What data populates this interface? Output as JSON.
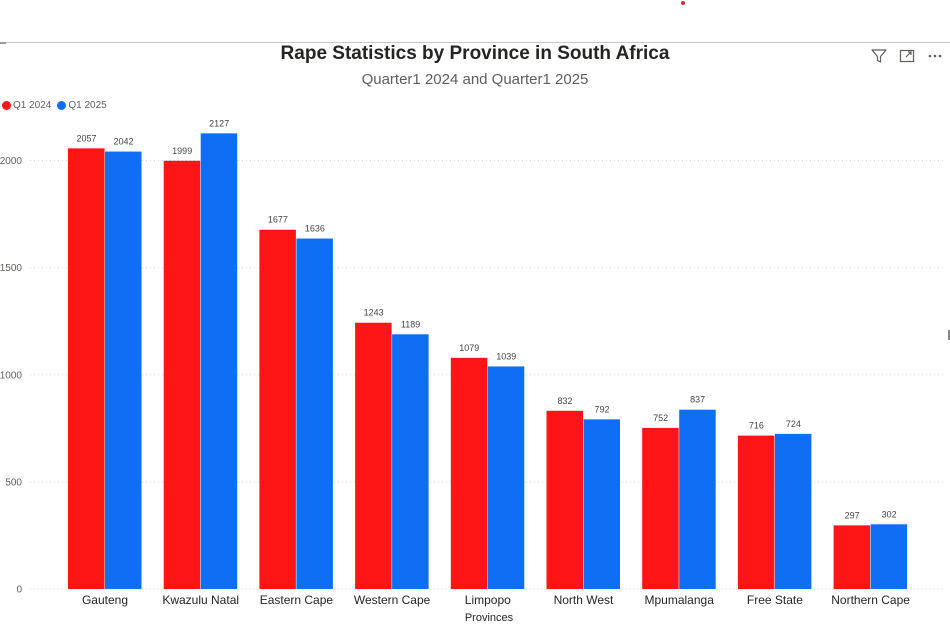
{
  "header": {
    "icons": [
      "filter-icon",
      "focus-mode-icon",
      "more-options-icon"
    ]
  },
  "chart_data": {
    "type": "bar",
    "title": "Rape Statistics by Province in South Africa",
    "subtitle": "Quarter1 2024 and Quarter1 2025",
    "xlabel": "Provinces",
    "ylabel": "",
    "ylim": [
      0,
      2250
    ],
    "yticks": [
      0,
      500,
      1000,
      1500,
      2000
    ],
    "grid": true,
    "legend_position": "top-left",
    "categories": [
      "Gauteng",
      "Kwazulu Natal",
      "Eastern Cape",
      "Western Cape",
      "Limpopo",
      "North West",
      "Mpumalanga",
      "Free State",
      "Northern Cape"
    ],
    "series": [
      {
        "name": "Q1 2024",
        "color": "#fe1516",
        "values": [
          2057,
          1999,
          1677,
          1243,
          1079,
          832,
          752,
          716,
          297
        ]
      },
      {
        "name": "Q1 2025",
        "color": "#0e6ff4",
        "values": [
          2042,
          2127,
          1636,
          1189,
          1039,
          792,
          837,
          724,
          302
        ]
      }
    ]
  }
}
